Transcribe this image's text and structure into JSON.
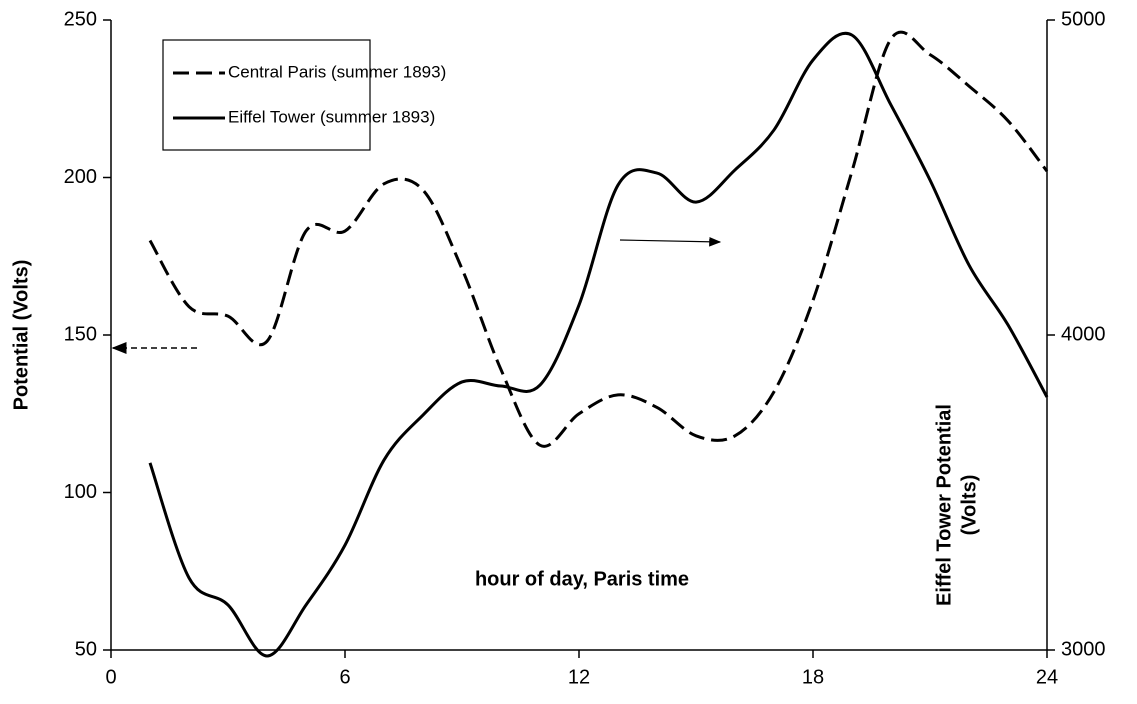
{
  "chart_data": {
    "type": "line",
    "ylabel": "Potential (Volts)",
    "y2label": [
      "Eiffel Tower Potential",
      "(Volts)"
    ],
    "annotation": "hour of day, Paris time",
    "x": [
      1,
      2,
      3,
      4,
      5,
      6,
      7,
      8,
      9,
      10,
      11,
      12,
      13,
      14,
      15,
      16,
      17,
      18,
      19,
      20,
      21,
      22,
      23,
      24
    ],
    "series": [
      {
        "name": "Central Paris (summer 1893)",
        "color": "#000000",
        "dash": true,
        "values": [
          180,
          159,
          156,
          148,
          183,
          183,
          198,
          196,
          171,
          139,
          115,
          125,
          131,
          127,
          118,
          118,
          132,
          161,
          202,
          244,
          239,
          229,
          218,
          202
        ]
      },
      {
        "name": "Eiffel Tower (summer 1893)",
        "color": "#000000",
        "dash": false,
        "axis": "y2",
        "values": [
          3594,
          3229,
          3143,
          2981,
          3143,
          3333,
          3603,
          3746,
          3851,
          3838,
          3841,
          4095,
          4476,
          4514,
          4422,
          4524,
          4651,
          4873,
          4952,
          4730,
          4492,
          4222,
          4032,
          3803
        ]
      }
    ],
    "xlim": [
      0,
      24
    ],
    "xticks": [
      0,
      6,
      12,
      18,
      24
    ],
    "ylim": [
      50,
      250
    ],
    "yticks": [
      50,
      100,
      150,
      200,
      250
    ],
    "y2lim": [
      3000,
      5000
    ],
    "y2ticks": [
      3000,
      4000,
      5000
    ],
    "grid": false,
    "legend": "upper left"
  }
}
